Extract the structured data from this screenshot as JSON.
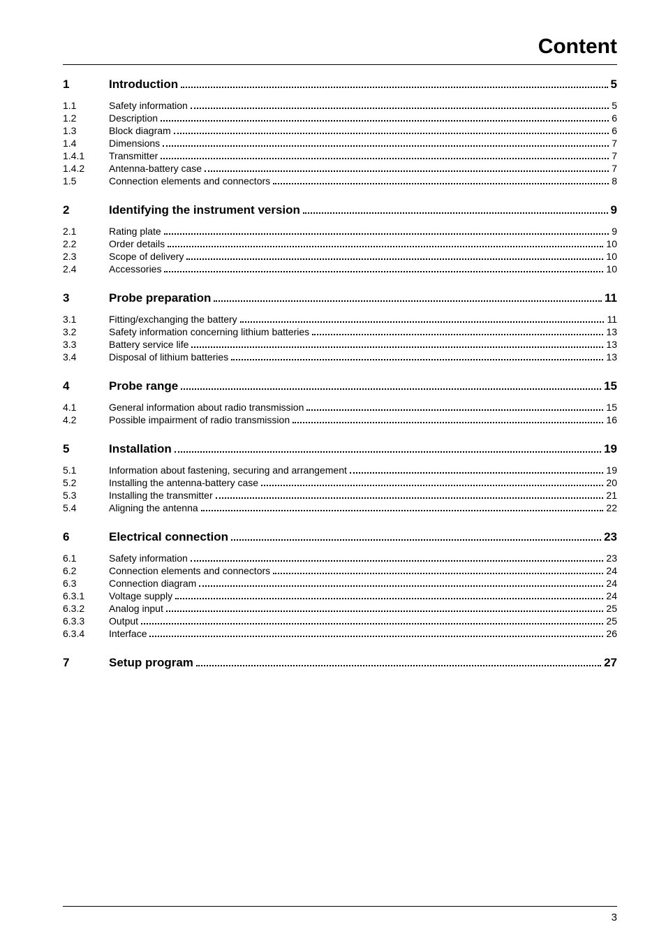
{
  "title": "Content",
  "page_number": "3",
  "toc": [
    {
      "level": "chapter",
      "num": "1",
      "title": "Introduction",
      "page": "5",
      "first": true
    },
    {
      "level": "entry",
      "num": "1.1",
      "title": "Safety information",
      "page": "5"
    },
    {
      "level": "entry",
      "num": "1.2",
      "title": "Description",
      "page": "6"
    },
    {
      "level": "entry",
      "num": "1.3",
      "title": "Block diagram",
      "page": "6"
    },
    {
      "level": "entry",
      "num": "1.4",
      "title": "Dimensions",
      "page": "7"
    },
    {
      "level": "entry",
      "num": "1.4.1",
      "title": "Transmitter",
      "page": "7"
    },
    {
      "level": "entry",
      "num": "1.4.2",
      "title": "Antenna-battery case",
      "page": "7"
    },
    {
      "level": "entry",
      "num": "1.5",
      "title": "Connection elements and connectors",
      "page": "8"
    },
    {
      "level": "chapter",
      "num": "2",
      "title": "Identifying the instrument version",
      "page": "9"
    },
    {
      "level": "entry",
      "num": "2.1",
      "title": "Rating plate",
      "page": "9"
    },
    {
      "level": "entry",
      "num": "2.2",
      "title": "Order details",
      "page": "10"
    },
    {
      "level": "entry",
      "num": "2.3",
      "title": "Scope of delivery",
      "page": "10"
    },
    {
      "level": "entry",
      "num": "2.4",
      "title": "Accessories",
      "page": "10"
    },
    {
      "level": "chapter",
      "num": "3",
      "title": "Probe preparation",
      "page": "11"
    },
    {
      "level": "entry",
      "num": "3.1",
      "title": "Fitting/exchanging the battery",
      "page": "11"
    },
    {
      "level": "entry",
      "num": "3.2",
      "title": "Safety information concerning lithium batteries",
      "page": "13"
    },
    {
      "level": "entry",
      "num": "3.3",
      "title": "Battery service life",
      "page": "13"
    },
    {
      "level": "entry",
      "num": "3.4",
      "title": "Disposal of lithium batteries",
      "page": "13"
    },
    {
      "level": "chapter",
      "num": "4",
      "title": "Probe range",
      "page": "15"
    },
    {
      "level": "entry",
      "num": "4.1",
      "title": "General information about radio transmission",
      "page": "15"
    },
    {
      "level": "entry",
      "num": "4.2",
      "title": "Possible impairment of radio transmission",
      "page": "16"
    },
    {
      "level": "chapter",
      "num": "5",
      "title": "Installation",
      "page": "19"
    },
    {
      "level": "entry",
      "num": "5.1",
      "title": "Information about fastening, securing and arrangement",
      "page": "19"
    },
    {
      "level": "entry",
      "num": "5.2",
      "title": "Installing the antenna-battery case",
      "page": "20"
    },
    {
      "level": "entry",
      "num": "5.3",
      "title": "Installing the transmitter",
      "page": "21"
    },
    {
      "level": "entry",
      "num": "5.4",
      "title": "Aligning the antenna",
      "page": "22"
    },
    {
      "level": "chapter",
      "num": "6",
      "title": "Electrical connection",
      "page": "23"
    },
    {
      "level": "entry",
      "num": "6.1",
      "title": "Safety information",
      "page": "23"
    },
    {
      "level": "entry",
      "num": "6.2",
      "title": "Connection elements and connectors",
      "page": "24"
    },
    {
      "level": "entry",
      "num": "6.3",
      "title": "Connection diagram",
      "page": "24"
    },
    {
      "level": "entry",
      "num": "6.3.1",
      "title": "Voltage supply",
      "page": "24"
    },
    {
      "level": "entry",
      "num": "6.3.2",
      "title": "Analog input",
      "page": "25"
    },
    {
      "level": "entry",
      "num": "6.3.3",
      "title": "Output",
      "page": "25"
    },
    {
      "level": "entry",
      "num": "6.3.4",
      "title": "Interface",
      "page": "26"
    },
    {
      "level": "chapter",
      "num": "7",
      "title": "Setup program",
      "page": "27"
    }
  ]
}
